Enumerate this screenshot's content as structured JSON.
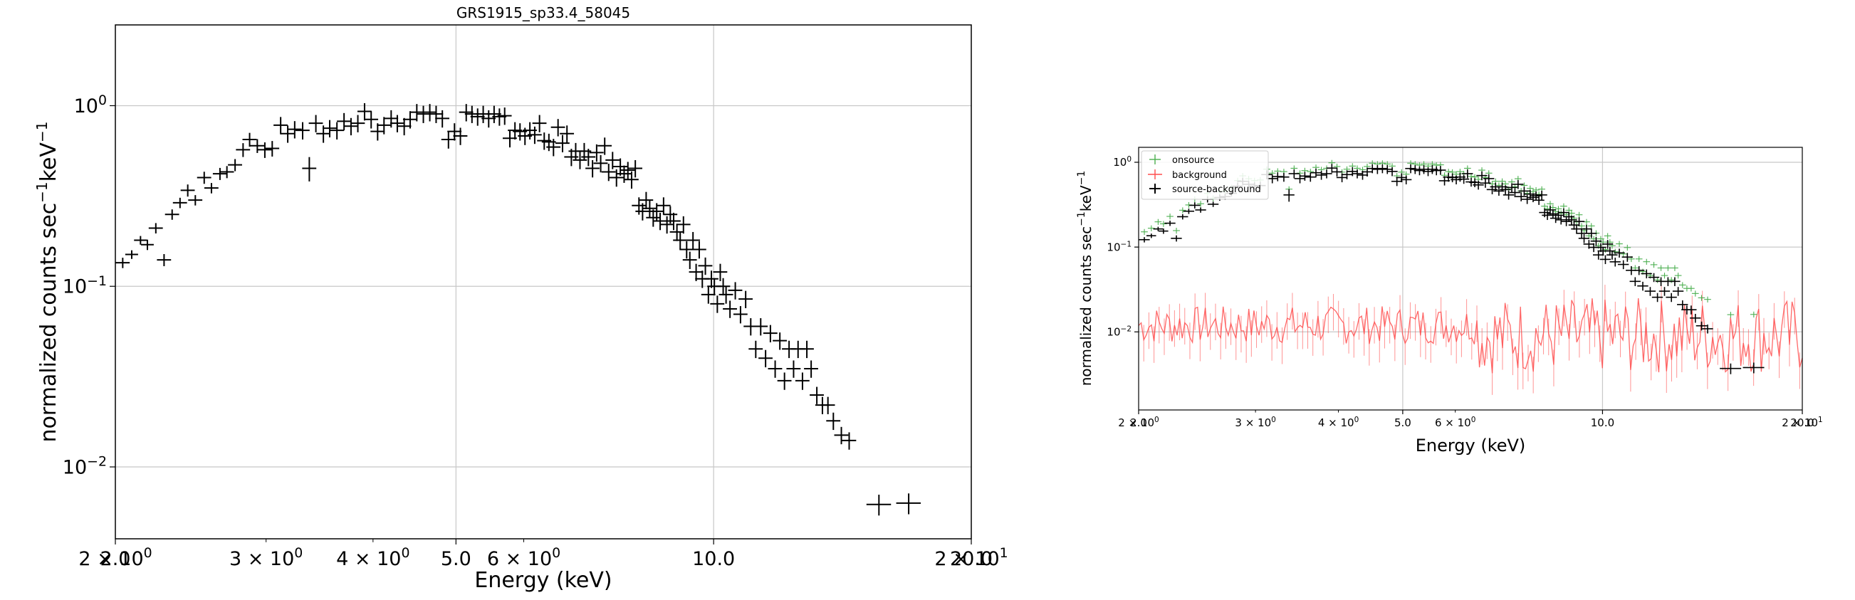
{
  "chart_data": [
    {
      "type": "scatter",
      "title": "GRS1915_sp33.4_58045",
      "xlabel": "Energy (keV)",
      "ylabel_main": "normalized counts sec",
      "ylabel_sup1": "−1",
      "ylabel_mid": "keV",
      "ylabel_sup2": "−1",
      "x_scale": "log",
      "y_scale": "log",
      "xlim": [
        2.0,
        20.0
      ],
      "ylim": [
        0.004,
        2.8
      ],
      "grid": true,
      "x_major_ticks": [
        {
          "v": 2.0,
          "label": "2.0"
        },
        {
          "v": 5.0,
          "label": "5.0"
        },
        {
          "v": 10.0,
          "label": "10.0"
        },
        {
          "v": 20.0,
          "label": "20.0"
        }
      ],
      "x_minor_ticks": [
        {
          "v": 2.0,
          "base": "2 × 10",
          "exp": "0"
        },
        {
          "v": 3.0,
          "base": "3 × 10",
          "exp": "0"
        },
        {
          "v": 4.0,
          "base": "4 × 10",
          "exp": "0"
        },
        {
          "v": 6.0,
          "base": "6 × 10",
          "exp": "0"
        },
        {
          "v": 20.0,
          "base": "2 × 10",
          "exp": "1"
        }
      ],
      "y_ticks": [
        {
          "v": 1,
          "base": "10",
          "exp": "0"
        },
        {
          "v": 0.1,
          "base": "10",
          "exp": "−1"
        },
        {
          "v": 0.01,
          "base": "10",
          "exp": "−2"
        }
      ],
      "series": [
        {
          "color": "#000000",
          "points": [
            [
              2.04,
              0.135,
              0.03,
              0.02
            ],
            [
              2.09,
              0.15,
              0.025,
              0.015
            ],
            [
              2.14,
              0.18,
              0.025,
              0.015
            ],
            [
              2.18,
              0.17,
              0.03,
              0.015
            ],
            [
              2.23,
              0.21,
              0.03,
              0.02
            ],
            [
              2.28,
              0.14,
              0.035,
              0.02
            ],
            [
              2.33,
              0.25,
              0.03,
              0.02
            ],
            [
              2.38,
              0.29,
              0.03,
              0.02
            ],
            [
              2.43,
              0.34,
              0.035,
              0.02
            ],
            [
              2.48,
              0.3,
              0.03,
              0.02
            ],
            [
              2.54,
              0.4,
              0.035,
              0.02
            ],
            [
              2.59,
              0.35,
              0.03,
              0.02
            ],
            [
              2.65,
              0.42,
              0.035,
              0.02
            ],
            [
              2.7,
              0.43,
              0.035,
              0.02
            ],
            [
              2.76,
              0.47,
              0.035,
              0.02
            ],
            [
              2.82,
              0.57,
              0.04,
              0.02
            ],
            [
              2.87,
              0.65,
              0.04,
              0.02
            ],
            [
              2.93,
              0.6,
              0.04,
              0.02
            ],
            [
              2.99,
              0.57,
              0.045,
              0.02
            ],
            [
              3.05,
              0.58,
              0.045,
              0.02
            ],
            [
              3.12,
              0.78,
              0.05,
              0.02
            ],
            [
              3.18,
              0.7,
              0.05,
              0.02
            ],
            [
              3.24,
              0.74,
              0.05,
              0.02
            ],
            [
              3.31,
              0.73,
              0.05,
              0.02
            ],
            [
              3.37,
              0.45,
              0.07,
              0.02
            ],
            [
              3.43,
              0.8,
              0.05,
              0.02
            ],
            [
              3.5,
              0.7,
              0.05,
              0.02
            ],
            [
              3.56,
              0.75,
              0.05,
              0.02
            ],
            [
              3.63,
              0.73,
              0.05,
              0.02
            ],
            [
              3.7,
              0.82,
              0.05,
              0.02
            ],
            [
              3.77,
              0.77,
              0.05,
              0.02
            ],
            [
              3.84,
              0.8,
              0.05,
              0.02
            ],
            [
              3.91,
              0.93,
              0.05,
              0.02
            ],
            [
              3.98,
              0.84,
              0.05,
              0.02
            ],
            [
              4.05,
              0.72,
              0.05,
              0.02
            ],
            [
              4.12,
              0.78,
              0.05,
              0.02
            ],
            [
              4.2,
              0.85,
              0.05,
              0.02
            ],
            [
              4.27,
              0.8,
              0.05,
              0.02
            ],
            [
              4.35,
              0.77,
              0.05,
              0.02
            ],
            [
              4.42,
              0.84,
              0.05,
              0.02
            ],
            [
              4.5,
              0.92,
              0.05,
              0.02
            ],
            [
              4.58,
              0.9,
              0.05,
              0.02
            ],
            [
              4.66,
              0.92,
              0.05,
              0.02
            ],
            [
              4.74,
              0.9,
              0.05,
              0.02
            ],
            [
              4.82,
              0.85,
              0.05,
              0.02
            ],
            [
              4.9,
              0.65,
              0.05,
              0.02
            ],
            [
              4.98,
              0.72,
              0.05,
              0.02
            ],
            [
              5.06,
              0.68,
              0.05,
              0.02
            ],
            [
              5.14,
              0.92,
              0.05,
              0.02
            ],
            [
              5.22,
              0.9,
              0.05,
              0.02
            ],
            [
              5.3,
              0.87,
              0.05,
              0.02
            ],
            [
              5.38,
              0.9,
              0.05,
              0.02
            ],
            [
              5.46,
              0.85,
              0.05,
              0.02
            ],
            [
              5.54,
              0.9,
              0.05,
              0.02
            ],
            [
              5.62,
              0.87,
              0.05,
              0.02
            ],
            [
              5.7,
              0.88,
              0.05,
              0.02
            ],
            [
              5.78,
              0.66,
              0.05,
              0.02
            ],
            [
              5.86,
              0.73,
              0.05,
              0.02
            ],
            [
              5.94,
              0.72,
              0.05,
              0.02
            ],
            [
              6.02,
              0.68,
              0.05,
              0.02
            ],
            [
              6.1,
              0.73,
              0.05,
              0.02
            ],
            [
              6.18,
              0.69,
              0.05,
              0.02
            ],
            [
              6.26,
              0.8,
              0.05,
              0.02
            ],
            [
              6.34,
              0.64,
              0.05,
              0.02
            ],
            [
              6.42,
              0.63,
              0.05,
              0.02
            ],
            [
              6.5,
              0.59,
              0.05,
              0.02
            ],
            [
              6.58,
              0.76,
              0.05,
              0.02
            ],
            [
              6.66,
              0.62,
              0.05,
              0.02
            ],
            [
              6.74,
              0.7,
              0.05,
              0.02
            ],
            [
              6.82,
              0.52,
              0.05,
              0.02
            ],
            [
              6.9,
              0.56,
              0.05,
              0.02
            ],
            [
              6.98,
              0.5,
              0.05,
              0.02
            ],
            [
              7.06,
              0.56,
              0.05,
              0.02
            ],
            [
              7.14,
              0.52,
              0.05,
              0.02
            ],
            [
              7.22,
              0.45,
              0.05,
              0.02
            ],
            [
              7.3,
              0.55,
              0.05,
              0.02
            ],
            [
              7.38,
              0.48,
              0.05,
              0.02
            ],
            [
              7.46,
              0.6,
              0.05,
              0.02
            ],
            [
              7.54,
              0.43,
              0.05,
              0.02
            ],
            [
              7.62,
              0.5,
              0.05,
              0.02
            ],
            [
              7.7,
              0.4,
              0.05,
              0.02
            ],
            [
              7.78,
              0.46,
              0.05,
              0.02
            ],
            [
              7.86,
              0.42,
              0.05,
              0.02
            ],
            [
              7.94,
              0.44,
              0.05,
              0.02
            ],
            [
              8.02,
              0.39,
              0.05,
              0.02
            ],
            [
              8.1,
              0.45,
              0.05,
              0.02
            ],
            [
              8.18,
              0.28,
              0.05,
              0.02
            ],
            [
              8.26,
              0.26,
              0.05,
              0.02
            ],
            [
              8.34,
              0.3,
              0.05,
              0.02
            ],
            [
              8.42,
              0.27,
              0.05,
              0.02
            ],
            [
              8.5,
              0.24,
              0.05,
              0.02
            ],
            [
              8.58,
              0.26,
              0.05,
              0.02
            ],
            [
              8.66,
              0.23,
              0.05,
              0.02
            ],
            [
              8.74,
              0.28,
              0.05,
              0.02
            ],
            [
              8.82,
              0.22,
              0.05,
              0.02
            ],
            [
              8.9,
              0.25,
              0.05,
              0.02
            ],
            [
              8.98,
              0.23,
              0.05,
              0.02
            ],
            [
              9.06,
              0.2,
              0.05,
              0.02
            ],
            [
              9.14,
              0.18,
              0.05,
              0.02
            ],
            [
              9.22,
              0.22,
              0.05,
              0.02
            ],
            [
              9.3,
              0.16,
              0.05,
              0.02
            ],
            [
              9.38,
              0.14,
              0.05,
              0.02
            ],
            [
              9.46,
              0.18,
              0.05,
              0.02
            ],
            [
              9.54,
              0.12,
              0.05,
              0.02
            ],
            [
              9.62,
              0.16,
              0.05,
              0.02
            ],
            [
              9.7,
              0.11,
              0.05,
              0.02
            ],
            [
              9.78,
              0.13,
              0.05,
              0.02
            ],
            [
              9.86,
              0.09,
              0.05,
              0.02
            ],
            [
              9.94,
              0.11,
              0.05,
              0.02
            ],
            [
              10.02,
              0.1,
              0.05,
              0.02
            ],
            [
              10.1,
              0.08,
              0.05,
              0.02
            ],
            [
              10.18,
              0.12,
              0.05,
              0.02
            ],
            [
              10.26,
              0.1,
              0.05,
              0.02
            ],
            [
              10.34,
              0.09,
              0.05,
              0.02
            ],
            [
              10.45,
              0.075,
              0.05,
              0.02
            ],
            [
              10.6,
              0.095,
              0.05,
              0.02
            ],
            [
              10.75,
              0.07,
              0.05,
              0.02
            ],
            [
              10.9,
              0.085,
              0.05,
              0.02
            ],
            [
              11.05,
              0.06,
              0.05,
              0.02
            ],
            [
              11.2,
              0.045,
              0.05,
              0.02
            ],
            [
              11.35,
              0.06,
              0.05,
              0.02
            ],
            [
              11.5,
              0.04,
              0.05,
              0.02
            ],
            [
              11.65,
              0.055,
              0.05,
              0.02
            ],
            [
              11.8,
              0.035,
              0.05,
              0.02
            ],
            [
              11.95,
              0.05,
              0.05,
              0.02
            ],
            [
              12.1,
              0.03,
              0.05,
              0.02
            ],
            [
              12.25,
              0.045,
              0.05,
              0.02
            ],
            [
              12.4,
              0.035,
              0.05,
              0.02
            ],
            [
              12.55,
              0.045,
              0.05,
              0.02
            ],
            [
              12.7,
              0.03,
              0.05,
              0.02
            ],
            [
              12.85,
              0.045,
              0.05,
              0.02
            ],
            [
              13.0,
              0.035,
              0.05,
              0.02
            ],
            [
              13.2,
              0.025,
              0.05,
              0.02
            ],
            [
              13.4,
              0.022,
              0.05,
              0.02
            ],
            [
              13.6,
              0.022,
              0.05,
              0.02
            ],
            [
              13.8,
              0.018,
              0.05,
              0.02
            ],
            [
              14.1,
              0.015,
              0.05,
              0.02
            ],
            [
              14.4,
              0.014,
              0.05,
              0.02
            ],
            [
              15.6,
              0.0062,
              0.06,
              0.06
            ],
            [
              16.9,
              0.0063,
              0.06,
              0.06
            ]
          ]
        }
      ]
    },
    {
      "type": "scatter",
      "xlabel": "Energy (keV)",
      "ylabel_main": "normalized counts sec",
      "ylabel_sup1": "−1",
      "ylabel_mid": "keV",
      "ylabel_sup2": "−1",
      "x_scale": "log",
      "y_scale": "log",
      "xlim": [
        2.0,
        20.0
      ],
      "ylim": [
        0.0012,
        1.5
      ],
      "grid": true,
      "legend_position": "top-left",
      "x_major_ticks": [
        {
          "v": 2.0,
          "label": "2.0"
        },
        {
          "v": 5.0,
          "label": "5.0"
        },
        {
          "v": 10.0,
          "label": "10.0"
        },
        {
          "v": 20.0,
          "label": "20.0"
        }
      ],
      "x_minor_ticks": [
        {
          "v": 2.0,
          "base": "2 × 10",
          "exp": "0"
        },
        {
          "v": 3.0,
          "base": "3 × 10",
          "exp": "0"
        },
        {
          "v": 4.0,
          "base": "4 × 10",
          "exp": "0"
        },
        {
          "v": 6.0,
          "base": "6 × 10",
          "exp": "0"
        },
        {
          "v": 20.0,
          "base": "2 × 10",
          "exp": "1"
        }
      ],
      "y_ticks": [
        {
          "v": 1,
          "base": "10",
          "exp": "0"
        },
        {
          "v": 0.1,
          "base": "10",
          "exp": "−1"
        },
        {
          "v": 0.01,
          "base": "10",
          "exp": "−2"
        }
      ],
      "series": [
        {
          "name": "onsource",
          "color": "#4caf50",
          "style": "plus"
        },
        {
          "name": "background",
          "color": "#ff4d4d",
          "style": "line"
        },
        {
          "name": "source-background",
          "color": "#000000",
          "style": "plus"
        }
      ]
    }
  ]
}
